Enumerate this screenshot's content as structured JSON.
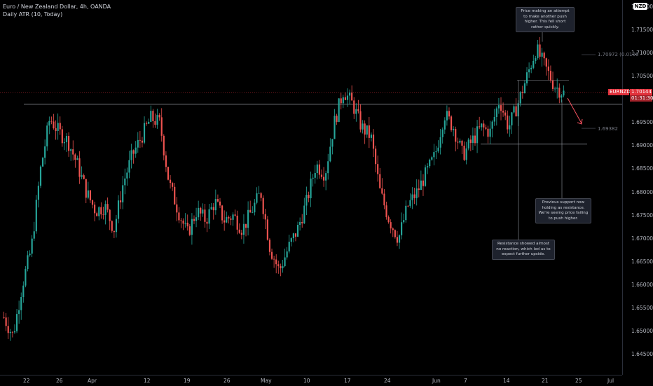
{
  "header": {
    "symbol_line": "Euro / New Zealand Dollar, 4h, OANDA",
    "indicator_line": "Daily ATR (10, Today)"
  },
  "price_axis": {
    "currency_badge": "NZD",
    "ticks": [
      "1.72000",
      "1.71500",
      "1.71000",
      "1.70500",
      "1.70000",
      "1.69500",
      "1.69000",
      "1.68500",
      "1.68000",
      "1.67500",
      "1.67000",
      "1.66500",
      "1.66000",
      "1.65500",
      "1.65000",
      "1.64500"
    ]
  },
  "time_axis": {
    "labels": [
      "22",
      "26",
      "Apr",
      "12",
      "19",
      "26",
      "May",
      "10",
      "17",
      "24",
      "Jun",
      "7",
      "14",
      "21",
      "25",
      "Jul"
    ]
  },
  "price_tag": {
    "symbol": "EURNZD",
    "price": "1.70144",
    "countdown": "01:31:30"
  },
  "horizontal_lines": {
    "upper_label": "1.70972 (0.0106",
    "lower_label": "1.69382"
  },
  "notes": {
    "top": "Price making an attempt to make another push higher. This fell short rather quickly.",
    "right": "Previous support now holding as resistance. We're seeing price failing to push higher.",
    "bottom": "Resistance showed almost no reaction, which led us to expect further upside."
  },
  "colors": {
    "up": "#26a69a",
    "down": "#ef5350",
    "background": "#000000",
    "arrow": "#f7525f"
  },
  "chart_data": {
    "type": "candlestick",
    "title": "Euro / New Zealand Dollar, 4h, OANDA",
    "ylim": [
      1.6425,
      1.7225
    ],
    "path_points": [
      {
        "x": "Mar 17",
        "y": 1.653
      },
      {
        "x": "Mar 18",
        "y": 1.649
      },
      {
        "x": "Mar 19",
        "y": 1.66
      },
      {
        "x": "Mar 20",
        "y": 1.668
      },
      {
        "x": "Mar 21",
        "y": 1.685
      },
      {
        "x": "Mar 22",
        "y": 1.696
      },
      {
        "x": "Mar 23",
        "y": 1.693
      },
      {
        "x": "Mar 25",
        "y": 1.691
      },
      {
        "x": "Mar 26",
        "y": 1.686
      },
      {
        "x": "Mar 28",
        "y": 1.68
      },
      {
        "x": "Mar 30",
        "y": 1.676
      },
      {
        "x": "Apr 1",
        "y": 1.677
      },
      {
        "x": "Apr 3",
        "y": 1.672
      },
      {
        "x": "Apr 5",
        "y": 1.682
      },
      {
        "x": "Apr 7",
        "y": 1.688
      },
      {
        "x": "Apr 9",
        "y": 1.692
      },
      {
        "x": "Apr 11",
        "y": 1.696
      },
      {
        "x": "Apr 12",
        "y": 1.695
      },
      {
        "x": "Apr 13",
        "y": 1.682
      },
      {
        "x": "Apr 15",
        "y": 1.676
      },
      {
        "x": "Apr 17",
        "y": 1.671
      },
      {
        "x": "Apr 19",
        "y": 1.676
      },
      {
        "x": "Apr 21",
        "y": 1.674
      },
      {
        "x": "Apr 23",
        "y": 1.678
      },
      {
        "x": "Apr 25",
        "y": 1.674
      },
      {
        "x": "Apr 27",
        "y": 1.675
      },
      {
        "x": "Apr 29",
        "y": 1.672
      },
      {
        "x": "May 1",
        "y": 1.676
      },
      {
        "x": "May 3",
        "y": 1.68
      },
      {
        "x": "May 5",
        "y": 1.668
      },
      {
        "x": "May 6",
        "y": 1.663
      },
      {
        "x": "May 8",
        "y": 1.668
      },
      {
        "x": "May 10",
        "y": 1.672
      },
      {
        "x": "May 12",
        "y": 1.678
      },
      {
        "x": "May 14",
        "y": 1.686
      },
      {
        "x": "May 16",
        "y": 1.684
      },
      {
        "x": "May 17",
        "y": 1.695
      },
      {
        "x": "May 18",
        "y": 1.702
      },
      {
        "x": "May 20",
        "y": 1.699
      },
      {
        "x": "May 22",
        "y": 1.694
      },
      {
        "x": "May 24",
        "y": 1.692
      },
      {
        "x": "May 25",
        "y": 1.68
      },
      {
        "x": "May 26",
        "y": 1.674
      },
      {
        "x": "May 27",
        "y": 1.67
      },
      {
        "x": "May 29",
        "y": 1.677
      },
      {
        "x": "May 31",
        "y": 1.68
      },
      {
        "x": "Jun 2",
        "y": 1.684
      },
      {
        "x": "Jun 4",
        "y": 1.688
      },
      {
        "x": "Jun 6",
        "y": 1.697
      },
      {
        "x": "Jun 7",
        "y": 1.694
      },
      {
        "x": "Jun 8",
        "y": 1.688
      },
      {
        "x": "Jun 10",
        "y": 1.691
      },
      {
        "x": "Jun 12",
        "y": 1.694
      },
      {
        "x": "Jun 14",
        "y": 1.693
      },
      {
        "x": "Jun 15",
        "y": 1.7
      },
      {
        "x": "Jun 17",
        "y": 1.694
      },
      {
        "x": "Jun 18",
        "y": 1.699
      },
      {
        "x": "Jun 19",
        "y": 1.705
      },
      {
        "x": "Jun 20",
        "y": 1.711
      },
      {
        "x": "Jun 21",
        "y": 1.707
      },
      {
        "x": "Jun 22",
        "y": 1.703
      },
      {
        "x": "Jun 23",
        "y": 1.7014
      }
    ],
    "levels": {
      "upper": 1.699,
      "lower": 1.6904,
      "current": 1.70144,
      "atr_upper": 1.70972,
      "atr_lower": 1.69382
    }
  }
}
